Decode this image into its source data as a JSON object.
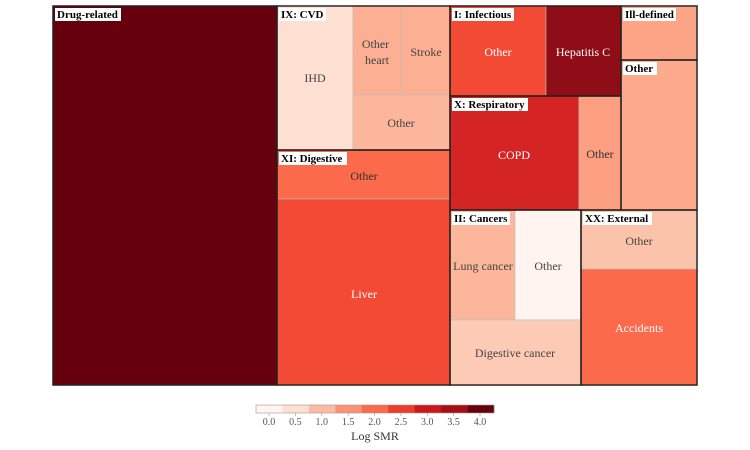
{
  "chart_data": {
    "type": "treemap",
    "colorbar_title": "Log SMR",
    "colorbar_ticks": [
      "0.0",
      "0.5",
      "1.0",
      "1.5",
      "2.0",
      "2.5",
      "3.0",
      "3.5",
      "4.0"
    ],
    "colorbar_colors": [
      "#fff5f0",
      "#fee0d2",
      "#fcbba1",
      "#fc9272",
      "#fb6a4a",
      "#ef3b2c",
      "#cb181d",
      "#a50f15",
      "#67000d"
    ],
    "groups": [
      {
        "name": "Drug-related",
        "tiles": []
      },
      {
        "name": "IX: CVD",
        "tiles": [
          {
            "label": "IHD",
            "log_smr": 0.7
          },
          {
            "label": "Other heart",
            "log_smr": 1.4
          },
          {
            "label": "Stroke",
            "log_smr": 1.4
          },
          {
            "label": "Other",
            "log_smr": 1.3
          }
        ]
      },
      {
        "name": "XI: Digestive",
        "tiles": [
          {
            "label": "Other",
            "log_smr": 2.0
          },
          {
            "label": "Liver",
            "log_smr": 2.3
          }
        ]
      },
      {
        "name": "I: Infectious",
        "tiles": [
          {
            "label": "Other",
            "log_smr": 2.3
          },
          {
            "label": "Hepatitis C",
            "log_smr": 3.6
          }
        ]
      },
      {
        "name": "X: Respiratory",
        "tiles": [
          {
            "label": "COPD",
            "log_smr": 2.8
          },
          {
            "label": "Other",
            "log_smr": 1.5
          }
        ]
      },
      {
        "name": "II: Cancers",
        "tiles": [
          {
            "label": "Lung cancer",
            "log_smr": 1.3
          },
          {
            "label": "Other",
            "log_smr": 0.1
          },
          {
            "label": "Digestive cancer",
            "log_smr": 0.9
          }
        ]
      },
      {
        "name": "XX: External",
        "tiles": [
          {
            "label": "Other",
            "log_smr": 1.0
          },
          {
            "label": "Accidents",
            "log_smr": 2.0
          }
        ]
      },
      {
        "name": "Ill-defined",
        "tiles": []
      },
      {
        "name": "Other",
        "tiles": []
      }
    ]
  }
}
